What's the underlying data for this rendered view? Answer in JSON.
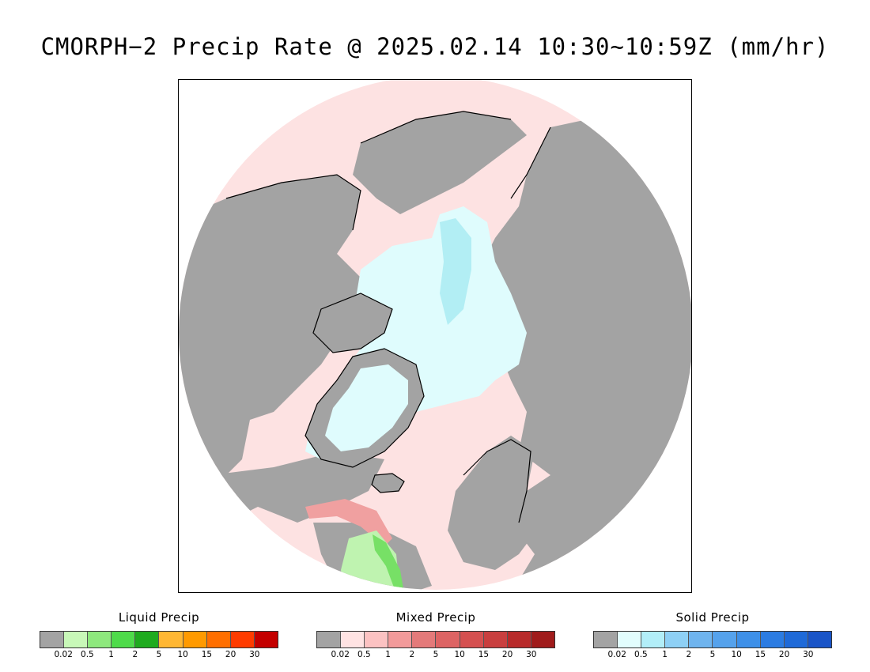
{
  "title": "CMORPH−2 Precip Rate @ 2025.02.14 10:30~10:59Z (mm/hr)",
  "map": {
    "projection": "north polar stereographic",
    "colors": {
      "background": "#ffffff",
      "land_no_precip": "#a3a3a3",
      "mixed_light": "#fde2e2",
      "solid_light": "#dffcfd",
      "solid_light2": "#b2eef4",
      "mixed_moderate": "#f0a0a0",
      "liquid_light": "#bff3b0",
      "liquid_moderate": "#77e066",
      "coastline": "#000000"
    }
  },
  "legends": [
    {
      "title": "Liquid Precip",
      "colors": [
        "#a3a3a3",
        "#c8f8b8",
        "#8ee87d",
        "#4edb4a",
        "#1fab1f",
        "#ffb733",
        "#ff9a00",
        "#ff6f00",
        "#ff3c00",
        "#c40000"
      ],
      "ticks": [
        "0.02",
        "0.5",
        "1",
        "2",
        "5",
        "10",
        "15",
        "20",
        "30"
      ]
    },
    {
      "title": "Mixed Precip",
      "colors": [
        "#a3a3a3",
        "#ffe3e3",
        "#fcc2c2",
        "#f29a9a",
        "#e47a7a",
        "#dd6464",
        "#d55050",
        "#c93f3f",
        "#b82a2a",
        "#a01c1c"
      ],
      "ticks": [
        "0.02",
        "0.5",
        "1",
        "2",
        "5",
        "10",
        "15",
        "20",
        "30"
      ]
    },
    {
      "title": "Solid Precip",
      "colors": [
        "#a3a3a3",
        "#e2fdfd",
        "#b2eef8",
        "#8ed0f5",
        "#6fb4ee",
        "#55a2ec",
        "#3e90e8",
        "#2c7ce2",
        "#1f6ad8",
        "#1a55c8"
      ],
      "ticks": [
        "0.02",
        "0.5",
        "1",
        "2",
        "5",
        "10",
        "15",
        "20",
        "30"
      ]
    }
  ]
}
